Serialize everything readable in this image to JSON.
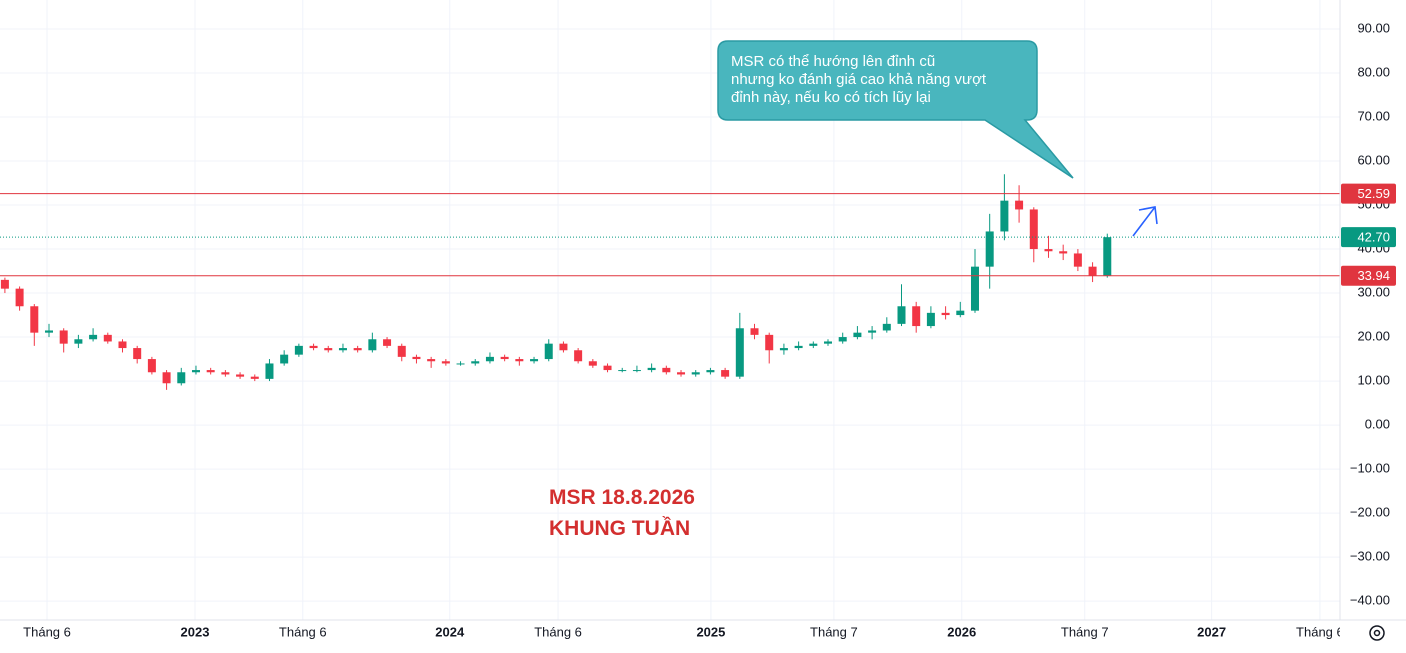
{
  "chart_data": {
    "type": "candlestick",
    "annotation": [
      "MSR 18.8.2026",
      "KHUNG TUẦN"
    ],
    "callout": [
      "MSR có thể hướng lên đỉnh cũ",
      "nhưng ko đánh giá cao khả năng vượt",
      "đỉnh này, nếu ko có tích lũy lại"
    ],
    "up_color": "#089981",
    "down_color": "#f23645",
    "x": [
      1,
      4,
      7,
      10,
      13,
      16,
      19,
      22,
      25,
      28,
      31,
      34,
      37,
      40,
      43,
      46,
      49,
      52,
      55,
      58,
      61,
      64,
      67,
      70,
      73,
      76,
      79,
      82,
      85,
      88,
      91,
      94,
      97,
      100,
      103,
      106,
      109,
      112,
      115,
      118,
      121,
      124,
      127,
      130,
      133,
      136,
      139,
      142,
      145,
      148,
      151,
      154,
      157,
      160,
      163,
      166,
      169,
      172,
      175,
      178,
      181,
      184,
      187,
      190,
      193,
      196,
      199,
      202,
      205,
      208,
      211,
      214,
      217,
      220,
      223,
      226
    ],
    "ohlc": [
      [
        33,
        33.5,
        30,
        31
      ],
      [
        31,
        31.5,
        26,
        27
      ],
      [
        27,
        27.5,
        18,
        21
      ],
      [
        21,
        23,
        20,
        21.5
      ],
      [
        21.5,
        22,
        16.5,
        18.5
      ],
      [
        18.5,
        20.5,
        17.5,
        19.5
      ],
      [
        19.5,
        22,
        19,
        20.5
      ],
      [
        20.5,
        21,
        18.5,
        19
      ],
      [
        19,
        19.5,
        16.5,
        17.5
      ],
      [
        17.5,
        18,
        14,
        15
      ],
      [
        15,
        15.5,
        11.5,
        12
      ],
      [
        12,
        12.5,
        8,
        9.5
      ],
      [
        9.5,
        13,
        9,
        12
      ],
      [
        12,
        13.5,
        11.5,
        12.5
      ],
      [
        12.5,
        13,
        11.5,
        12
      ],
      [
        12,
        12.5,
        11,
        11.5
      ],
      [
        11.5,
        12,
        10.5,
        11
      ],
      [
        11,
        11.5,
        10,
        10.5
      ],
      [
        10.5,
        15,
        10,
        14
      ],
      [
        14,
        17,
        13.5,
        16
      ],
      [
        16,
        18.5,
        15.5,
        18
      ],
      [
        18,
        18.5,
        17,
        17.5
      ],
      [
        17.5,
        18,
        16.5,
        17
      ],
      [
        17,
        18.5,
        16.5,
        17.5
      ],
      [
        17.5,
        18,
        16.5,
        17
      ],
      [
        17,
        21,
        16.5,
        19.5
      ],
      [
        19.5,
        20,
        17.5,
        18
      ],
      [
        18,
        18.5,
        14.5,
        15.5
      ],
      [
        15.5,
        16,
        14,
        15
      ],
      [
        15,
        15.5,
        13,
        14.5
      ],
      [
        14.5,
        15,
        13.5,
        14
      ],
      [
        14,
        14.5,
        13.5,
        14
      ],
      [
        14,
        15,
        13.5,
        14.5
      ],
      [
        14.5,
        16.5,
        14,
        15.5
      ],
      [
        15.5,
        16,
        14.5,
        15
      ],
      [
        15,
        15.5,
        13.5,
        14.5
      ],
      [
        14.5,
        15.5,
        14,
        15
      ],
      [
        15,
        19.5,
        14.5,
        18.5
      ],
      [
        18.5,
        19,
        16.5,
        17
      ],
      [
        17,
        17.5,
        14,
        14.5
      ],
      [
        14.5,
        15,
        13,
        13.5
      ],
      [
        13.5,
        14,
        12,
        12.5
      ],
      [
        12.5,
        13,
        12,
        12.5
      ],
      [
        12.5,
        13.5,
        12,
        12.5
      ],
      [
        12.5,
        14,
        12,
        13
      ],
      [
        13,
        13.5,
        11.5,
        12
      ],
      [
        12,
        12.5,
        11,
        11.5
      ],
      [
        11.5,
        12.5,
        11,
        12
      ],
      [
        12,
        13,
        11.5,
        12.5
      ],
      [
        12.5,
        13,
        10.5,
        11
      ],
      [
        11,
        25.5,
        10.5,
        22
      ],
      [
        22,
        23,
        19.5,
        20.5
      ],
      [
        20.5,
        21,
        14,
        17
      ],
      [
        17,
        18.5,
        16,
        17.5
      ],
      [
        17.5,
        19,
        17,
        18
      ],
      [
        18,
        19,
        17.5,
        18.5
      ],
      [
        18.5,
        19.5,
        18,
        19
      ],
      [
        19,
        21,
        18.5,
        20
      ],
      [
        20,
        22.5,
        19.5,
        21
      ],
      [
        21,
        22.5,
        19.5,
        21.5
      ],
      [
        21.5,
        24.5,
        21,
        23
      ],
      [
        23,
        32,
        22.5,
        27
      ],
      [
        27,
        28,
        21,
        22.5
      ],
      [
        22.5,
        27,
        22,
        25.5
      ],
      [
        25.5,
        27,
        24,
        25
      ],
      [
        25,
        28,
        24.5,
        26
      ],
      [
        26,
        40,
        25.5,
        36
      ],
      [
        36,
        48,
        31,
        44
      ],
      [
        44,
        57,
        42,
        51
      ],
      [
        51,
        54.5,
        46,
        49
      ],
      [
        49,
        49.5,
        37,
        40
      ],
      [
        40,
        43,
        38,
        39.5
      ],
      [
        39.5,
        41,
        37.5,
        39
      ],
      [
        39,
        40,
        35,
        36
      ],
      [
        36,
        37,
        32.5,
        34
      ],
      [
        34,
        43.5,
        33.5,
        42.7
      ]
    ],
    "price_lines": [
      {
        "value": 52.59,
        "label": "52.59",
        "color": "#e0353f",
        "style": "solid"
      },
      {
        "value": 42.7,
        "label": "42.70",
        "color": "#089981",
        "style": "dotted"
      },
      {
        "value": 33.94,
        "label": "33.94",
        "color": "#e0353f",
        "style": "solid"
      }
    ],
    "xlim": [
      0,
      273.5
    ],
    "xticks": [
      {
        "value": 9.6,
        "label": "Tháng 6"
      },
      {
        "value": 39.8,
        "label": "2023"
      },
      {
        "value": 61.8,
        "label": "Tháng 6"
      },
      {
        "value": 91.8,
        "label": "2024"
      },
      {
        "value": 113.9,
        "label": "Tháng 6"
      },
      {
        "value": 145.1,
        "label": "2025"
      },
      {
        "value": 170.2,
        "label": "Tháng 7"
      },
      {
        "value": 196.3,
        "label": "2026"
      },
      {
        "value": 221.4,
        "label": "Tháng 7"
      },
      {
        "value": 247.3,
        "label": "2027"
      },
      {
        "value": 269.4,
        "label": "Tháng 6"
      }
    ],
    "ylim": [
      -44.3,
      96.6
    ],
    "yticks": [
      {
        "value": 90,
        "label": "90.00"
      },
      {
        "value": 80,
        "label": "80.00"
      },
      {
        "value": 70,
        "label": "70.00"
      },
      {
        "value": 60,
        "label": "60.00"
      },
      {
        "value": 50,
        "label": "50.00"
      },
      {
        "value": 40,
        "label": "40.00"
      },
      {
        "value": 30,
        "label": "30.00"
      },
      {
        "value": 20,
        "label": "20.00"
      },
      {
        "value": 10,
        "label": "10.00"
      },
      {
        "value": 0,
        "label": "0.00"
      },
      {
        "value": -10,
        "label": "−10.00"
      },
      {
        "value": -20,
        "label": "−20.00"
      },
      {
        "value": -30,
        "label": "−30.00"
      },
      {
        "value": -40,
        "label": "−40.00"
      }
    ],
    "grid": true
  }
}
